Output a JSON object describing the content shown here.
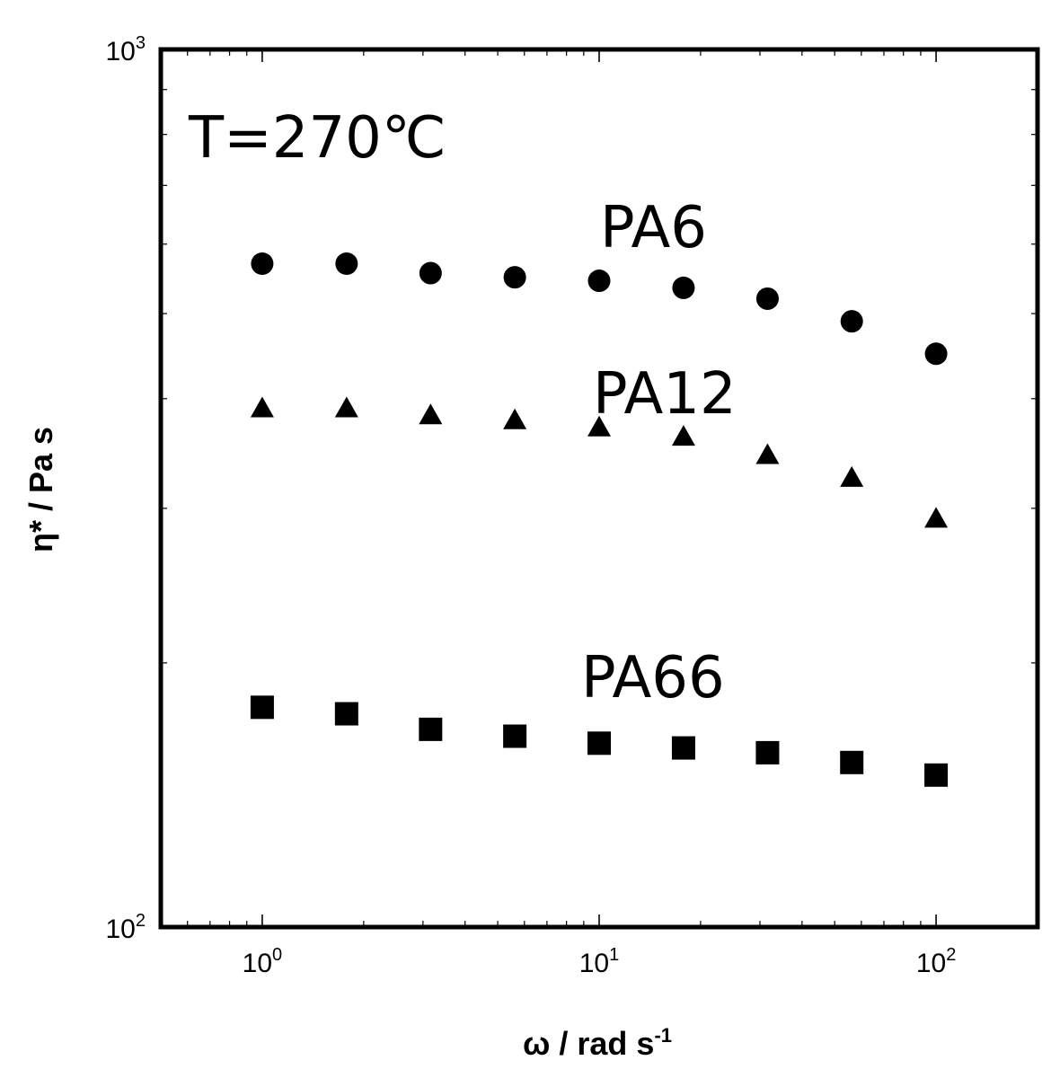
{
  "chart_data": {
    "type": "scatter",
    "x_scale": "log",
    "y_scale": "log",
    "xlim": [
      0.5,
      200
    ],
    "ylim": [
      100,
      1000
    ],
    "x_ticks": [
      {
        "base": "10",
        "exp": "0"
      },
      {
        "base": "10",
        "exp": "1"
      },
      {
        "base": "10",
        "exp": "2"
      }
    ],
    "y_ticks": [
      {
        "base": "10",
        "exp": "2"
      },
      {
        "base": "10",
        "exp": "3"
      }
    ],
    "xlabel": {
      "main": "ω / rad s",
      "sup": "-1"
    },
    "ylabel": "η* / Pa s",
    "annotations": {
      "temperature": "T=270℃",
      "pa6": "PA6",
      "pa12": "PA12",
      "pa66": "PA66"
    },
    "x": [
      1.0,
      1.78,
      3.16,
      5.62,
      10.0,
      17.8,
      31.6,
      56.2,
      100.0
    ],
    "series": [
      {
        "name": "PA6",
        "marker": "circle",
        "values": [
          570,
          570,
          556,
          550,
          545,
          535,
          520,
          490,
          450
        ]
      },
      {
        "name": "PA12",
        "marker": "triangle",
        "values": [
          390,
          390,
          383,
          378,
          371,
          362,
          345,
          325,
          292
        ]
      },
      {
        "name": "PA66",
        "marker": "square",
        "values": [
          178,
          175,
          168,
          165,
          162,
          160,
          158,
          154,
          149
        ]
      }
    ],
    "grid": false,
    "legend": "none"
  }
}
